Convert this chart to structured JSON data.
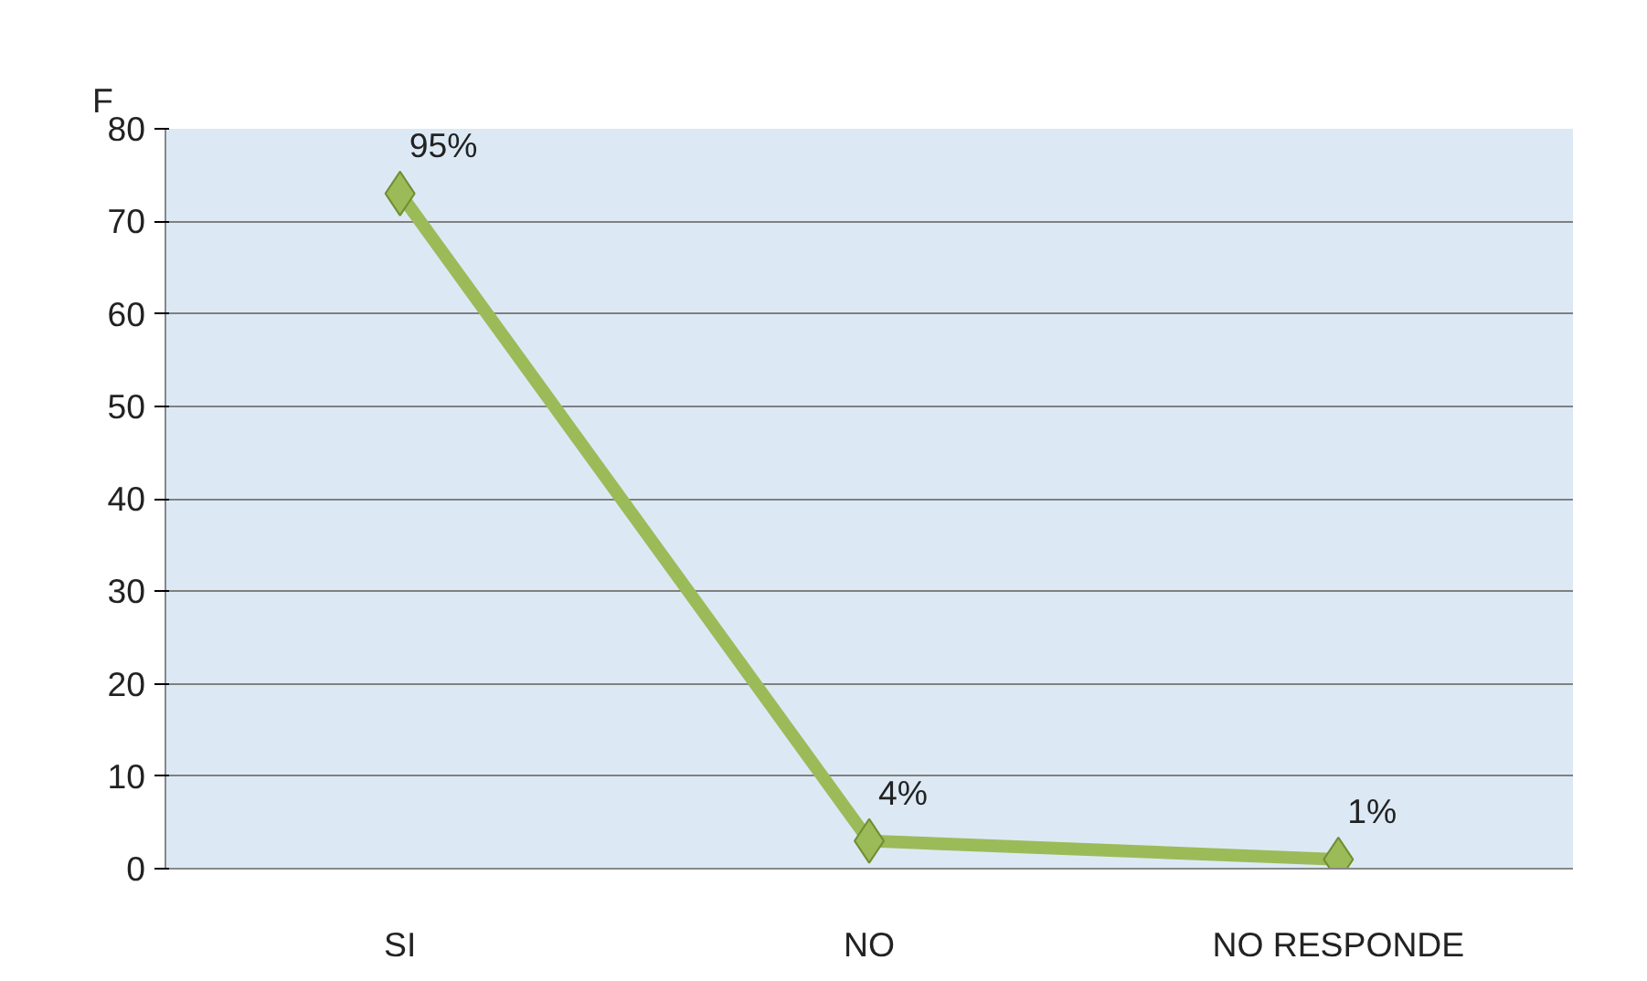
{
  "chart_data": {
    "type": "line",
    "ylabel": "F",
    "categories": [
      "SI",
      "NO",
      "NO RESPONDE"
    ],
    "series": [
      {
        "color": "#9bbb59",
        "values": [
          73,
          3,
          1
        ]
      }
    ],
    "value_labels": [
      "95%",
      "4%",
      "1%"
    ],
    "ylim": [
      0,
      80
    ],
    "yticks": [
      0,
      10,
      20,
      30,
      40,
      50,
      60,
      70,
      80
    ],
    "grid": "y",
    "marker": "diamond",
    "line_style": "solid"
  }
}
